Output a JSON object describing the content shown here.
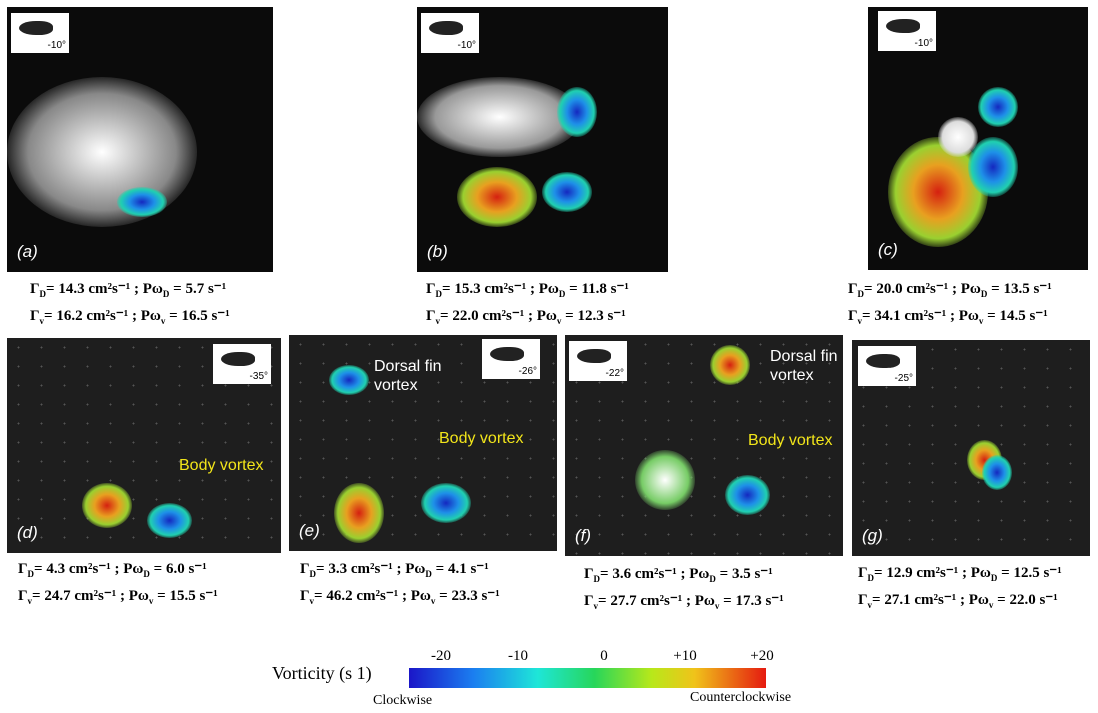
{
  "panels": [
    {
      "label": "(a)",
      "angle": "-10°",
      "caption": [
        {
          "g": "Γ",
          "gs": "D",
          "gv": "= 14.3 cm²s⁻¹ ;",
          "p": "Pω",
          "ps": "D",
          "pv": "= 5.7 s⁻¹"
        },
        {
          "g": "Γ",
          "gs": "v",
          "gv": "= 16.2 cm²s⁻¹ ;",
          "p": "Pω",
          "ps": "v",
          "pv": "= 16.5 s⁻¹"
        }
      ]
    },
    {
      "label": "(b)",
      "angle": "-10°",
      "caption": [
        {
          "g": "Γ",
          "gs": "D",
          "gv": "= 15.3 cm²s⁻¹ ;",
          "p": "Pω",
          "ps": "D",
          "pv": "= 11.8 s⁻¹"
        },
        {
          "g": "Γ",
          "gs": "v",
          "gv": "= 22.0 cm²s⁻¹ ;",
          "p": "Pω",
          "ps": "v",
          "pv": "= 12.3 s⁻¹"
        }
      ]
    },
    {
      "label": "(c)",
      "angle": "-10°",
      "caption": [
        {
          "g": "Γ",
          "gs": "D",
          "gv": "= 20.0 cm²s⁻¹ ;",
          "p": "Pω",
          "ps": "D",
          "pv": "= 13.5 s⁻¹"
        },
        {
          "g": "Γ",
          "gs": "v",
          "gv": "= 34.1 cm²s⁻¹ ;",
          "p": "Pω",
          "ps": "v",
          "pv": "= 14.5 s⁻¹"
        }
      ]
    },
    {
      "label": "(d)",
      "angle": "-35°",
      "annotations": [
        {
          "lines": [
            "Body vortex"
          ]
        }
      ],
      "caption": [
        {
          "g": "Γ",
          "gs": "D",
          "gv": "= 4.3 cm²s⁻¹ ;",
          "p": "Pω",
          "ps": "D",
          "pv": "= 6.0 s⁻¹"
        },
        {
          "g": "Γ",
          "gs": "v",
          "gv": "= 24.7 cm²s⁻¹ ;",
          "p": "Pω",
          "ps": "v",
          "pv": "= 15.5 s⁻¹"
        }
      ]
    },
    {
      "label": "(e)",
      "angle": "-26°",
      "annotations": [
        {
          "lines": [
            "Dorsal fin",
            "vortex"
          ]
        },
        {
          "lines": [
            "Body vortex"
          ]
        }
      ],
      "caption": [
        {
          "g": "Γ",
          "gs": "D",
          "gv": "= 3.3 cm²s⁻¹ ;",
          "p": "Pω",
          "ps": "D",
          "pv": "= 4.1 s⁻¹"
        },
        {
          "g": "Γ",
          "gs": "v",
          "gv": "= 46.2 cm²s⁻¹ ;",
          "p": "Pω",
          "ps": "v",
          "pv": "= 23.3 s⁻¹"
        }
      ]
    },
    {
      "label": "(f)",
      "angle": "-22°",
      "annotations": [
        {
          "lines": [
            "Dorsal fin",
            "vortex"
          ]
        },
        {
          "lines": [
            "Body vortex"
          ]
        }
      ],
      "caption": [
        {
          "g": "Γ",
          "gs": "D",
          "gv": "= 3.6 cm²s⁻¹ ;",
          "p": "Pω",
          "ps": "D",
          "pv": "= 3.5 s⁻¹"
        },
        {
          "g": "Γ",
          "gs": "v",
          "gv": "= 27.7 cm²s⁻¹ ;",
          "p": "Pω",
          "ps": "v",
          "pv": "= 17.3 s⁻¹"
        }
      ]
    },
    {
      "label": "(g)",
      "angle": "-25°",
      "caption": [
        {
          "g": "Γ",
          "gs": "D",
          "gv": "= 12.9 cm²s⁻¹ ;",
          "p": "Pω",
          "ps": "D",
          "pv": "= 12.5 s⁻¹"
        },
        {
          "g": "Γ",
          "gs": "v",
          "gv": "= 27.1 cm²s⁻¹ ;",
          "p": "Pω",
          "ps": "v",
          "pv": "= 22.0 s⁻¹"
        }
      ]
    }
  ],
  "colorbar": {
    "title": "Vorticity (s 1)",
    "ticks": [
      "-20",
      "-10",
      "0",
      "+10",
      "+20"
    ],
    "left_label": "Clockwise",
    "right_label": "Counterclockwise"
  }
}
